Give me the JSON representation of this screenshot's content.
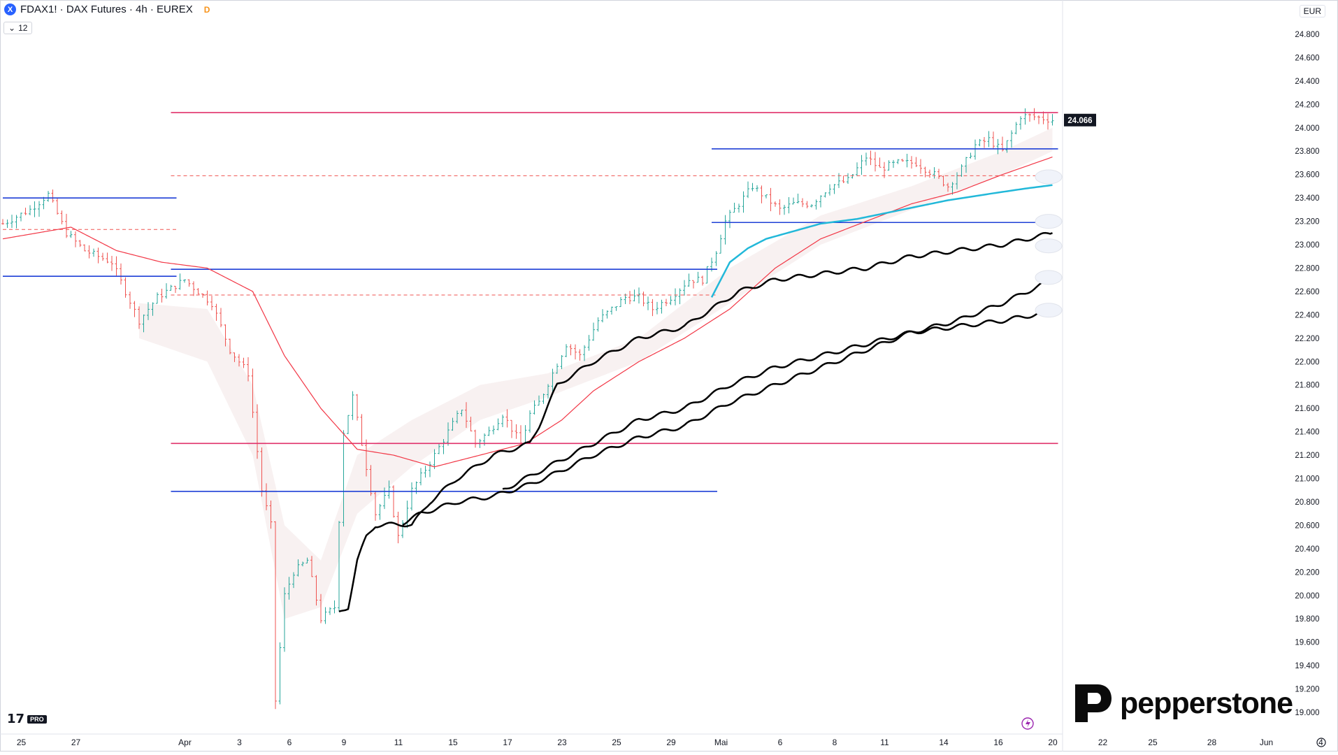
{
  "header": {
    "symbol_icon": "X",
    "title": "FDAX1! · DAX Futures · 4h · EUREX",
    "badge": "D",
    "collapse_count": "12"
  },
  "currency": "EUR",
  "watermark": {
    "brand": "pepperstone",
    "tv_pro": "PRO",
    "tv_mark": "17"
  },
  "colors": {
    "bull": "#26a69a",
    "bear": "#ef5350",
    "blue_level": "#1e3fd6",
    "red_level": "#e0306a",
    "dashed_level": "#ef5350",
    "ema_red": "#f23645",
    "cyan": "#22b8d9",
    "black": "#000000"
  },
  "chart_data": {
    "type": "candlestick",
    "interval": "4h",
    "ylim": [
      18900,
      24950
    ],
    "y_ticks": [
      19000,
      19200,
      19400,
      19600,
      19800,
      20000,
      20200,
      20400,
      20600,
      20800,
      21000,
      21200,
      21400,
      21600,
      21800,
      22000,
      22200,
      22400,
      22600,
      22800,
      23000,
      23200,
      23400,
      23600,
      23800,
      24000,
      24200,
      24400,
      24600,
      24800
    ],
    "y_tick_labels": [
      "19.000",
      "19.200",
      "19.400",
      "19.600",
      "19.800",
      "20.000",
      "20.200",
      "20.400",
      "20.600",
      "20.800",
      "21.000",
      "21.200",
      "21.400",
      "21.600",
      "21.800",
      "22.000",
      "22.200",
      "22.400",
      "22.600",
      "22.800",
      "23.000",
      "23.200",
      "23.400",
      "23.600",
      "23.800",
      "24.000",
      "24.200",
      "24.400",
      "24.600",
      "24.800"
    ],
    "last_price": 24066,
    "last_price_label": "24.066",
    "x_ticks": [
      {
        "label": "25",
        "bar": 1
      },
      {
        "label": "27",
        "bar": 13
      },
      {
        "label": "Apr",
        "bar": 37
      },
      {
        "label": "3",
        "bar": 49
      },
      {
        "label": "6",
        "bar": 60
      },
      {
        "label": "9",
        "bar": 72
      },
      {
        "label": "11",
        "bar": 84
      },
      {
        "label": "15",
        "bar": 96
      },
      {
        "label": "17",
        "bar": 108
      },
      {
        "label": "23",
        "bar": 120
      },
      {
        "label": "25",
        "bar": 132
      },
      {
        "label": "29",
        "bar": 144
      },
      {
        "label": "Mai",
        "bar": 155
      },
      {
        "label": "6",
        "bar": 168
      },
      {
        "label": "8",
        "bar": 180
      },
      {
        "label": "11",
        "bar": 191
      },
      {
        "label": "14",
        "bar": 204
      },
      {
        "label": "16",
        "bar": 216
      },
      {
        "label": "20",
        "bar": 228
      },
      {
        "label": "22",
        "bar": 239
      },
      {
        "label": "25",
        "bar": 250
      },
      {
        "label": "28",
        "bar": 263
      },
      {
        "label": "Jun",
        "bar": 275
      },
      {
        "label": "4",
        "bar": 287
      }
    ],
    "price_anchors": [
      [
        0,
        23180
      ],
      [
        6,
        23300
      ],
      [
        10,
        23430
      ],
      [
        14,
        23100
      ],
      [
        18,
        22950
      ],
      [
        24,
        22850
      ],
      [
        30,
        22350
      ],
      [
        34,
        22550
      ],
      [
        40,
        22700
      ],
      [
        46,
        22500
      ],
      [
        50,
        22100
      ],
      [
        54,
        21900
      ],
      [
        57,
        20900
      ],
      [
        59,
        20600
      ],
      [
        60,
        19100
      ],
      [
        62,
        20000
      ],
      [
        64,
        20200
      ],
      [
        67,
        20300
      ],
      [
        70,
        19800
      ],
      [
        73,
        19900
      ],
      [
        75,
        21400
      ],
      [
        77,
        21700
      ],
      [
        79,
        21300
      ],
      [
        82,
        20700
      ],
      [
        85,
        20900
      ],
      [
        87,
        20500
      ],
      [
        90,
        20900
      ],
      [
        95,
        21200
      ],
      [
        98,
        21400
      ],
      [
        101,
        21600
      ],
      [
        104,
        21300
      ],
      [
        107,
        21400
      ],
      [
        110,
        21550
      ],
      [
        114,
        21300
      ],
      [
        116,
        21550
      ],
      [
        118,
        21650
      ],
      [
        121,
        21900
      ],
      [
        124,
        22150
      ],
      [
        127,
        22050
      ],
      [
        129,
        22200
      ],
      [
        131,
        22350
      ],
      [
        134,
        22450
      ],
      [
        137,
        22550
      ],
      [
        140,
        22550
      ],
      [
        143,
        22450
      ],
      [
        147,
        22550
      ],
      [
        151,
        22700
      ],
      [
        154,
        22700
      ],
      [
        157,
        22950
      ],
      [
        159,
        23200
      ],
      [
        162,
        23350
      ],
      [
        165,
        23500
      ],
      [
        168,
        23400
      ],
      [
        171,
        23300
      ],
      [
        174,
        23350
      ],
      [
        178,
        23350
      ],
      [
        182,
        23500
      ],
      [
        186,
        23550
      ],
      [
        190,
        23750
      ],
      [
        193,
        23650
      ],
      [
        197,
        23700
      ],
      [
        201,
        23700
      ],
      [
        205,
        23600
      ],
      [
        208,
        23500
      ],
      [
        211,
        23650
      ],
      [
        214,
        23850
      ],
      [
        217,
        23900
      ],
      [
        220,
        23800
      ],
      [
        222,
        23950
      ],
      [
        224,
        24100
      ],
      [
        226,
        24100
      ],
      [
        229,
        24080
      ],
      [
        231,
        24066
      ]
    ],
    "candle_count": 232,
    "levels": [
      {
        "type": "red",
        "value": 24130,
        "from_bar": 37,
        "to_bar": 231
      },
      {
        "type": "blue",
        "value": 23820,
        "from_bar": 156,
        "to_bar": 231
      },
      {
        "type": "red-dashed",
        "value": 23590,
        "from_bar": 37,
        "to_bar": 231
      },
      {
        "type": "blue",
        "value": 23400,
        "from_bar": 0,
        "to_bar": 37
      },
      {
        "type": "blue",
        "value": 23190,
        "from_bar": 156,
        "to_bar": 231
      },
      {
        "type": "red-dashed",
        "value": 23130,
        "from_bar": 0,
        "to_bar": 37
      },
      {
        "type": "blue",
        "value": 22790,
        "from_bar": 37,
        "to_bar": 156
      },
      {
        "type": "blue",
        "value": 22730,
        "from_bar": 0,
        "to_bar": 37
      },
      {
        "type": "red-dashed",
        "value": 22570,
        "from_bar": 37,
        "to_bar": 156
      },
      {
        "type": "red",
        "value": 21300,
        "from_bar": 37,
        "to_bar": 231
      },
      {
        "type": "blue",
        "value": 20890,
        "from_bar": 37,
        "to_bar": 156
      }
    ],
    "indicator_lines": [
      {
        "name": "",
        "color": "#f23645",
        "width": 1.2,
        "points": [
          [
            0,
            23050
          ],
          [
            15,
            23150
          ],
          [
            25,
            22950
          ],
          [
            35,
            22850
          ],
          [
            45,
            22800
          ],
          [
            55,
            22600
          ],
          [
            62,
            22050
          ],
          [
            70,
            21600
          ],
          [
            78,
            21250
          ],
          [
            86,
            21200
          ],
          [
            95,
            21100
          ],
          [
            105,
            21200
          ],
          [
            115,
            21300
          ],
          [
            123,
            21500
          ],
          [
            130,
            21750
          ],
          [
            140,
            22000
          ],
          [
            150,
            22200
          ],
          [
            160,
            22450
          ],
          [
            170,
            22800
          ],
          [
            180,
            23050
          ],
          [
            190,
            23200
          ],
          [
            200,
            23350
          ],
          [
            210,
            23450
          ],
          [
            220,
            23600
          ],
          [
            231,
            23750
          ]
        ]
      },
      {
        "name": "",
        "color": "#22b8d9",
        "width": 2.5,
        "points": [
          [
            156,
            22550
          ],
          [
            160,
            22850
          ],
          [
            164,
            22970
          ],
          [
            168,
            23050
          ],
          [
            180,
            23180
          ],
          [
            188,
            23220
          ],
          [
            198,
            23300
          ],
          [
            208,
            23380
          ],
          [
            218,
            23440
          ],
          [
            225,
            23480
          ],
          [
            231,
            23510
          ]
        ]
      },
      {
        "name": "",
        "color": "#000000",
        "width": 2.5,
        "wavy": true,
        "points": [
          [
            74,
            19850
          ],
          [
            76,
            19900
          ],
          [
            78,
            20300
          ],
          [
            80,
            20500
          ],
          [
            82,
            20600
          ],
          [
            88,
            20610
          ],
          [
            90,
            20600
          ],
          [
            94,
            20800
          ],
          [
            100,
            21000
          ],
          [
            108,
            21200
          ],
          [
            116,
            21300
          ],
          [
            118,
            21450
          ],
          [
            122,
            21800
          ],
          [
            130,
            22000
          ],
          [
            140,
            22200
          ],
          [
            150,
            22300
          ],
          [
            156,
            22450
          ],
          [
            162,
            22600
          ],
          [
            170,
            22700
          ],
          [
            180,
            22750
          ],
          [
            190,
            22800
          ],
          [
            200,
            22900
          ],
          [
            210,
            22950
          ],
          [
            220,
            23000
          ],
          [
            231,
            23100
          ]
        ]
      },
      {
        "name": "",
        "color": "#000000",
        "width": 2.5,
        "wavy": true,
        "points": [
          [
            88,
            20620
          ],
          [
            92,
            20700
          ],
          [
            100,
            20800
          ],
          [
            108,
            20850
          ],
          [
            116,
            20950
          ],
          [
            122,
            21050
          ],
          [
            130,
            21200
          ],
          [
            140,
            21350
          ],
          [
            150,
            21450
          ],
          [
            160,
            21650
          ],
          [
            170,
            21800
          ],
          [
            180,
            21950
          ],
          [
            190,
            22100
          ],
          [
            200,
            22250
          ],
          [
            210,
            22350
          ],
          [
            220,
            22500
          ],
          [
            231,
            22700
          ]
        ]
      },
      {
        "name": "",
        "color": "#000000",
        "width": 2.5,
        "wavy": true,
        "points": [
          [
            110,
            20900
          ],
          [
            120,
            21100
          ],
          [
            130,
            21300
          ],
          [
            140,
            21500
          ],
          [
            150,
            21600
          ],
          [
            160,
            21800
          ],
          [
            170,
            21950
          ],
          [
            180,
            22050
          ],
          [
            190,
            22150
          ],
          [
            200,
            22250
          ],
          [
            210,
            22300
          ],
          [
            220,
            22350
          ],
          [
            231,
            22430
          ]
        ]
      }
    ]
  }
}
